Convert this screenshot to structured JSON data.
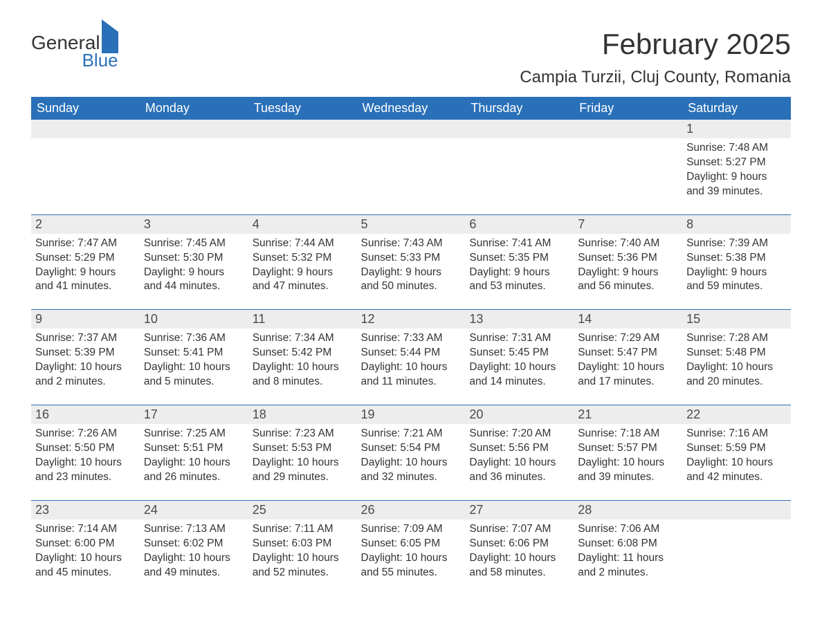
{
  "logo": {
    "text1": "General",
    "text2": "Blue"
  },
  "title": "February 2025",
  "location": "Campia Turzii, Cluj County, Romania",
  "colors": {
    "header_bg": "#2a70b8",
    "header_text": "#ffffff",
    "daynum_bg": "#ededed",
    "text": "#333333",
    "rule": "#2a70b8",
    "page_bg": "#ffffff"
  },
  "day_headers": [
    "Sunday",
    "Monday",
    "Tuesday",
    "Wednesday",
    "Thursday",
    "Friday",
    "Saturday"
  ],
  "weeks": [
    {
      "days": [
        null,
        null,
        null,
        null,
        null,
        null,
        {
          "n": "1",
          "sunrise": "Sunrise: 7:48 AM",
          "sunset": "Sunset: 5:27 PM",
          "daylight": "Daylight: 9 hours and 39 minutes."
        }
      ]
    },
    {
      "days": [
        {
          "n": "2",
          "sunrise": "Sunrise: 7:47 AM",
          "sunset": "Sunset: 5:29 PM",
          "daylight": "Daylight: 9 hours and 41 minutes."
        },
        {
          "n": "3",
          "sunrise": "Sunrise: 7:45 AM",
          "sunset": "Sunset: 5:30 PM",
          "daylight": "Daylight: 9 hours and 44 minutes."
        },
        {
          "n": "4",
          "sunrise": "Sunrise: 7:44 AM",
          "sunset": "Sunset: 5:32 PM",
          "daylight": "Daylight: 9 hours and 47 minutes."
        },
        {
          "n": "5",
          "sunrise": "Sunrise: 7:43 AM",
          "sunset": "Sunset: 5:33 PM",
          "daylight": "Daylight: 9 hours and 50 minutes."
        },
        {
          "n": "6",
          "sunrise": "Sunrise: 7:41 AM",
          "sunset": "Sunset: 5:35 PM",
          "daylight": "Daylight: 9 hours and 53 minutes."
        },
        {
          "n": "7",
          "sunrise": "Sunrise: 7:40 AM",
          "sunset": "Sunset: 5:36 PM",
          "daylight": "Daylight: 9 hours and 56 minutes."
        },
        {
          "n": "8",
          "sunrise": "Sunrise: 7:39 AM",
          "sunset": "Sunset: 5:38 PM",
          "daylight": "Daylight: 9 hours and 59 minutes."
        }
      ]
    },
    {
      "days": [
        {
          "n": "9",
          "sunrise": "Sunrise: 7:37 AM",
          "sunset": "Sunset: 5:39 PM",
          "daylight": "Daylight: 10 hours and 2 minutes."
        },
        {
          "n": "10",
          "sunrise": "Sunrise: 7:36 AM",
          "sunset": "Sunset: 5:41 PM",
          "daylight": "Daylight: 10 hours and 5 minutes."
        },
        {
          "n": "11",
          "sunrise": "Sunrise: 7:34 AM",
          "sunset": "Sunset: 5:42 PM",
          "daylight": "Daylight: 10 hours and 8 minutes."
        },
        {
          "n": "12",
          "sunrise": "Sunrise: 7:33 AM",
          "sunset": "Sunset: 5:44 PM",
          "daylight": "Daylight: 10 hours and 11 minutes."
        },
        {
          "n": "13",
          "sunrise": "Sunrise: 7:31 AM",
          "sunset": "Sunset: 5:45 PM",
          "daylight": "Daylight: 10 hours and 14 minutes."
        },
        {
          "n": "14",
          "sunrise": "Sunrise: 7:29 AM",
          "sunset": "Sunset: 5:47 PM",
          "daylight": "Daylight: 10 hours and 17 minutes."
        },
        {
          "n": "15",
          "sunrise": "Sunrise: 7:28 AM",
          "sunset": "Sunset: 5:48 PM",
          "daylight": "Daylight: 10 hours and 20 minutes."
        }
      ]
    },
    {
      "days": [
        {
          "n": "16",
          "sunrise": "Sunrise: 7:26 AM",
          "sunset": "Sunset: 5:50 PM",
          "daylight": "Daylight: 10 hours and 23 minutes."
        },
        {
          "n": "17",
          "sunrise": "Sunrise: 7:25 AM",
          "sunset": "Sunset: 5:51 PM",
          "daylight": "Daylight: 10 hours and 26 minutes."
        },
        {
          "n": "18",
          "sunrise": "Sunrise: 7:23 AM",
          "sunset": "Sunset: 5:53 PM",
          "daylight": "Daylight: 10 hours and 29 minutes."
        },
        {
          "n": "19",
          "sunrise": "Sunrise: 7:21 AM",
          "sunset": "Sunset: 5:54 PM",
          "daylight": "Daylight: 10 hours and 32 minutes."
        },
        {
          "n": "20",
          "sunrise": "Sunrise: 7:20 AM",
          "sunset": "Sunset: 5:56 PM",
          "daylight": "Daylight: 10 hours and 36 minutes."
        },
        {
          "n": "21",
          "sunrise": "Sunrise: 7:18 AM",
          "sunset": "Sunset: 5:57 PM",
          "daylight": "Daylight: 10 hours and 39 minutes."
        },
        {
          "n": "22",
          "sunrise": "Sunrise: 7:16 AM",
          "sunset": "Sunset: 5:59 PM",
          "daylight": "Daylight: 10 hours and 42 minutes."
        }
      ]
    },
    {
      "days": [
        {
          "n": "23",
          "sunrise": "Sunrise: 7:14 AM",
          "sunset": "Sunset: 6:00 PM",
          "daylight": "Daylight: 10 hours and 45 minutes."
        },
        {
          "n": "24",
          "sunrise": "Sunrise: 7:13 AM",
          "sunset": "Sunset: 6:02 PM",
          "daylight": "Daylight: 10 hours and 49 minutes."
        },
        {
          "n": "25",
          "sunrise": "Sunrise: 7:11 AM",
          "sunset": "Sunset: 6:03 PM",
          "daylight": "Daylight: 10 hours and 52 minutes."
        },
        {
          "n": "26",
          "sunrise": "Sunrise: 7:09 AM",
          "sunset": "Sunset: 6:05 PM",
          "daylight": "Daylight: 10 hours and 55 minutes."
        },
        {
          "n": "27",
          "sunrise": "Sunrise: 7:07 AM",
          "sunset": "Sunset: 6:06 PM",
          "daylight": "Daylight: 10 hours and 58 minutes."
        },
        {
          "n": "28",
          "sunrise": "Sunrise: 7:06 AM",
          "sunset": "Sunset: 6:08 PM",
          "daylight": "Daylight: 11 hours and 2 minutes."
        },
        null
      ]
    }
  ]
}
